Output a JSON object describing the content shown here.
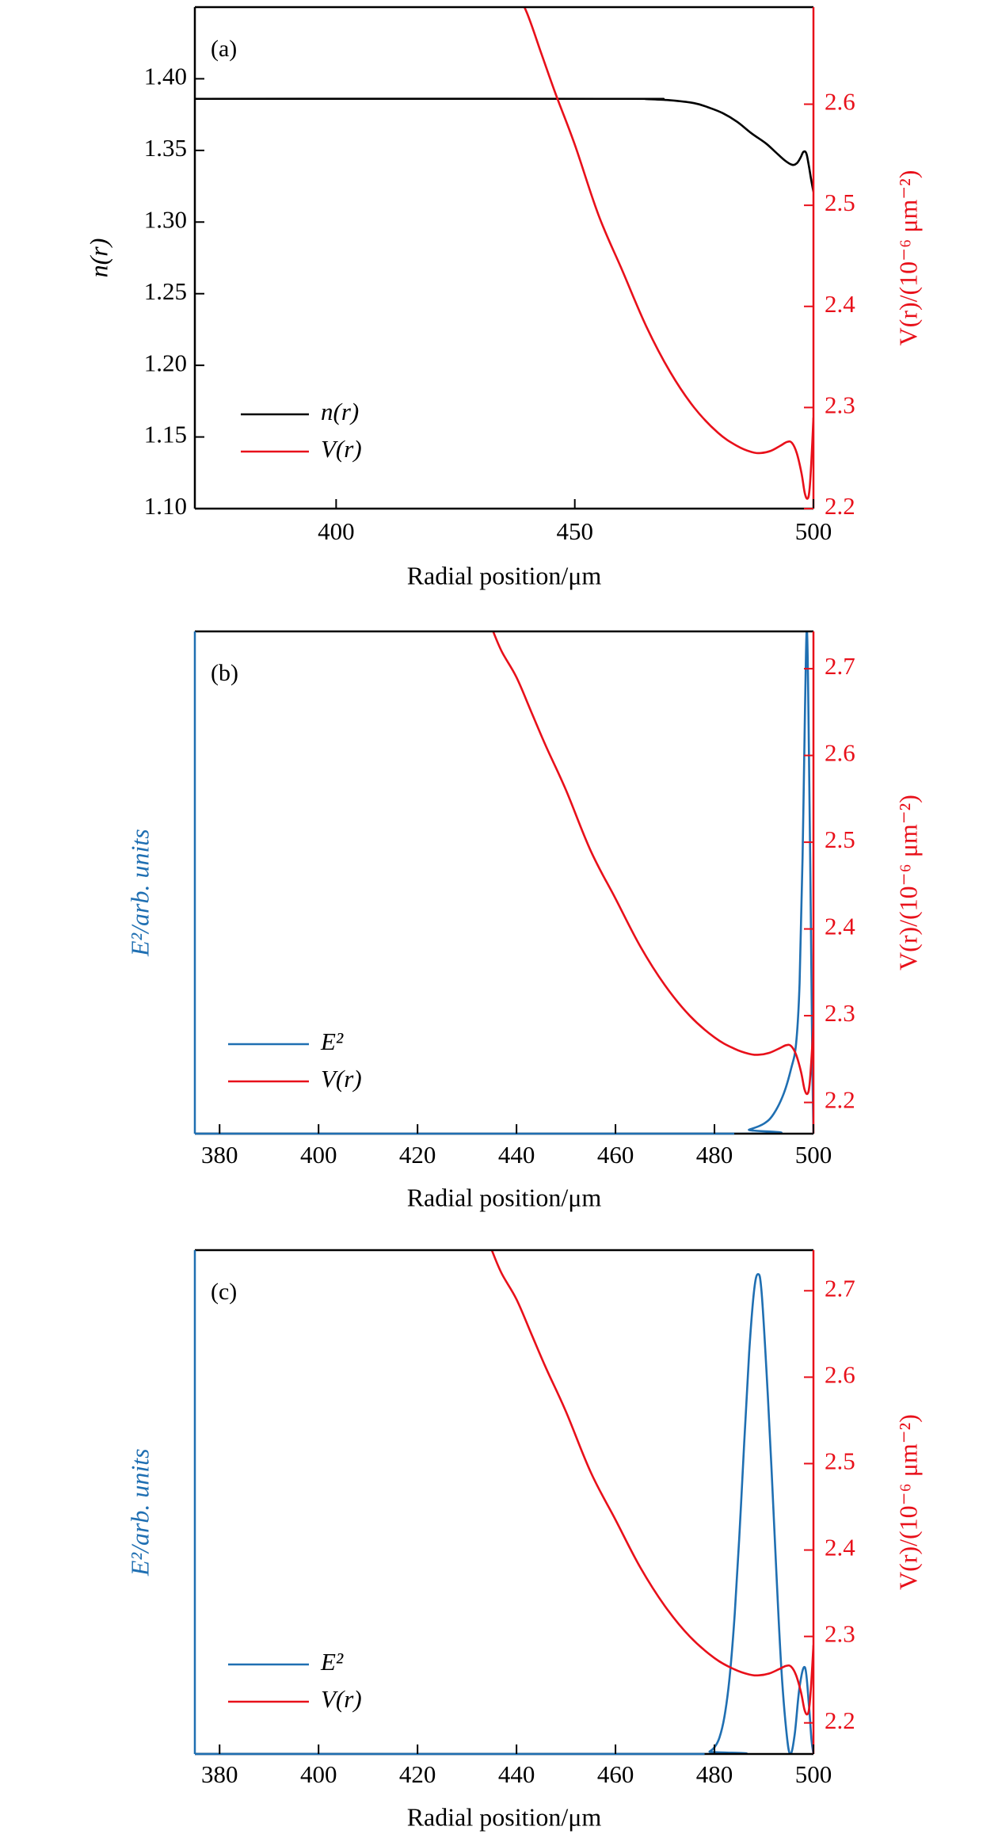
{
  "chart_data": [
    {
      "type": "line",
      "panel_label": "(a)",
      "xlabel": "Radial position/μm",
      "xlim": [
        370.4,
        500
      ],
      "xticks": [
        400,
        450,
        500
      ],
      "xtick_labels": [
        "400",
        "450",
        "500"
      ],
      "left_axis": {
        "label": "n(r)",
        "color": "#000000",
        "ylim": [
          1.1,
          1.45
        ],
        "ticks": [
          1.1,
          1.15,
          1.2,
          1.25,
          1.3,
          1.35,
          1.4
        ],
        "tick_labels": [
          "1.10",
          "1.15",
          "1.20",
          "1.25",
          "1.30",
          "1.35",
          "1.40"
        ]
      },
      "right_axis": {
        "label": "V(r)/(10⁻⁶ μm⁻²)",
        "color": "#e8101a",
        "ylim": [
          2.2,
          2.696
        ],
        "ticks": [
          2.2,
          2.3,
          2.4,
          2.5,
          2.6
        ],
        "tick_labels": [
          "2.2",
          "2.3",
          "2.4",
          "2.5",
          "2.6"
        ]
      },
      "legend": {
        "placement": "lower-left",
        "entries": [
          "n(r)",
          "V(r)"
        ]
      },
      "series": [
        {
          "name": "n(r)",
          "axis": "left",
          "color": "#000000",
          "x": [
            370,
            460,
            465,
            470,
            475,
            478,
            481,
            484,
            487,
            490,
            492,
            494,
            495.5,
            496.5,
            497.3,
            497.9,
            498.5,
            499,
            499.5,
            500
          ],
          "y": [
            1.386,
            1.386,
            1.3858,
            1.385,
            1.383,
            1.38,
            1.376,
            1.37,
            1.362,
            1.355,
            1.349,
            1.343,
            1.34,
            1.341,
            1.345,
            1.349,
            1.348,
            1.34,
            1.33,
            1.321
          ]
        },
        {
          "name": "V(r)",
          "axis": "right",
          "color": "#e8101a",
          "x": [
            435,
            437,
            440,
            443,
            446,
            450,
            455,
            460,
            465,
            470,
            475,
            480,
            484,
            487,
            489,
            491,
            493,
            494.5,
            495.5,
            496.5,
            497.5,
            498.2,
            498.8,
            499.2,
            499.6,
            500
          ],
          "y": [
            2.747,
            2.72,
            2.69,
            2.65,
            2.61,
            2.56,
            2.49,
            2.435,
            2.38,
            2.335,
            2.3,
            2.275,
            2.262,
            2.256,
            2.255,
            2.257,
            2.262,
            2.266,
            2.265,
            2.255,
            2.235,
            2.215,
            2.21,
            2.22,
            2.25,
            2.29
          ]
        }
      ]
    },
    {
      "type": "line",
      "panel_label": "(b)",
      "xlabel": "Radial position/μm",
      "xlim": [
        375,
        500
      ],
      "xticks": [
        380,
        400,
        420,
        440,
        460,
        480,
        500
      ],
      "xtick_labels": [
        "380",
        "400",
        "420",
        "440",
        "460",
        "480",
        "500"
      ],
      "left_axis": {
        "label": "E²/arb. units",
        "color": "#1f6fb2",
        "ylim": [
          0,
          1.0
        ],
        "ticks": [],
        "tick_labels": []
      },
      "right_axis": {
        "label": "V(r)/(10⁻⁶ μm⁻²)",
        "color": "#e8101a",
        "ylim": [
          2.164,
          2.743
        ],
        "ticks": [
          2.2,
          2.3,
          2.4,
          2.5,
          2.6,
          2.7
        ],
        "tick_labels": [
          "2.2",
          "2.3",
          "2.4",
          "2.5",
          "2.6",
          "2.7"
        ]
      },
      "legend": {
        "placement": "lower-left",
        "entries": [
          "E²",
          "V(r)"
        ]
      },
      "series": [
        {
          "name": "E²",
          "axis": "left",
          "color": "#1f6fb2",
          "x": [
            375,
            484,
            487,
            490,
            492,
            494,
            495.5,
            496.5,
            497.2,
            497.8,
            498.3,
            498.7,
            499.1,
            499.5,
            499.8,
            500
          ],
          "y": [
            0,
            0,
            0.008,
            0.02,
            0.04,
            0.08,
            0.13,
            0.18,
            0.3,
            0.55,
            0.85,
            1.0,
            0.75,
            0.4,
            0.12,
            0
          ]
        },
        {
          "name": "V(r)",
          "axis": "right",
          "color": "#e8101a",
          "x": [
            435,
            437,
            440,
            443,
            446,
            450,
            455,
            460,
            465,
            470,
            475,
            480,
            484,
            487,
            489,
            491,
            493,
            494.5,
            495.5,
            496.5,
            497.5,
            498.2,
            498.8,
            499.2,
            499.6,
            500
          ],
          "y": [
            2.747,
            2.72,
            2.69,
            2.65,
            2.61,
            2.56,
            2.49,
            2.435,
            2.38,
            2.335,
            2.3,
            2.275,
            2.262,
            2.256,
            2.255,
            2.257,
            2.262,
            2.266,
            2.265,
            2.255,
            2.235,
            2.215,
            2.21,
            2.22,
            2.25,
            2.29
          ]
        }
      ]
    },
    {
      "type": "line",
      "panel_label": "(c)",
      "xlabel": "Radial position/μm",
      "xlim": [
        375,
        500
      ],
      "xticks": [
        380,
        400,
        420,
        440,
        460,
        480,
        500
      ],
      "xtick_labels": [
        "380",
        "400",
        "420",
        "440",
        "460",
        "480",
        "500"
      ],
      "left_axis": {
        "label": "E²/arb. units",
        "color": "#1f6fb2",
        "ylim": [
          0,
          1.05
        ],
        "ticks": [],
        "tick_labels": []
      },
      "right_axis": {
        "label": "V(r)/(10⁻⁶ μm⁻²)",
        "color": "#e8101a",
        "ylim": [
          2.164,
          2.747
        ],
        "ticks": [
          2.2,
          2.3,
          2.4,
          2.5,
          2.6,
          2.7
        ],
        "tick_labels": [
          "2.2",
          "2.3",
          "2.4",
          "2.5",
          "2.6",
          "2.7"
        ]
      },
      "legend": {
        "placement": "lower-left",
        "entries": [
          "E²",
          "V(r)"
        ]
      },
      "series": [
        {
          "name": "E²",
          "axis": "left",
          "color": "#1f6fb2",
          "x": [
            375,
            478,
            479,
            480,
            481,
            482,
            483,
            484,
            485,
            486,
            487,
            488,
            488.8,
            489.5,
            490.5,
            491.5,
            492.5,
            493.5,
            494.5,
            495.3,
            496.2,
            497.2,
            498.3,
            499.1,
            499.6,
            500
          ],
          "y": [
            0,
            0,
            0.005,
            0.014,
            0.034,
            0.077,
            0.154,
            0.278,
            0.449,
            0.647,
            0.835,
            0.965,
            1.0,
            0.965,
            0.8,
            0.6,
            0.38,
            0.18,
            0.05,
            0,
            0.04,
            0.14,
            0.18,
            0.1,
            0.03,
            0
          ]
        },
        {
          "name": "V(r)",
          "axis": "right",
          "color": "#e8101a",
          "x": [
            435,
            437,
            440,
            443,
            446,
            450,
            455,
            460,
            465,
            470,
            475,
            480,
            484,
            487,
            489,
            491,
            493,
            494.5,
            495.5,
            496.5,
            497.5,
            498.2,
            498.8,
            499.2,
            499.6,
            500
          ],
          "y": [
            2.747,
            2.72,
            2.69,
            2.65,
            2.61,
            2.56,
            2.49,
            2.435,
            2.38,
            2.335,
            2.3,
            2.275,
            2.262,
            2.256,
            2.255,
            2.257,
            2.262,
            2.266,
            2.265,
            2.255,
            2.235,
            2.215,
            2.21,
            2.22,
            2.25,
            2.29
          ]
        }
      ]
    }
  ]
}
